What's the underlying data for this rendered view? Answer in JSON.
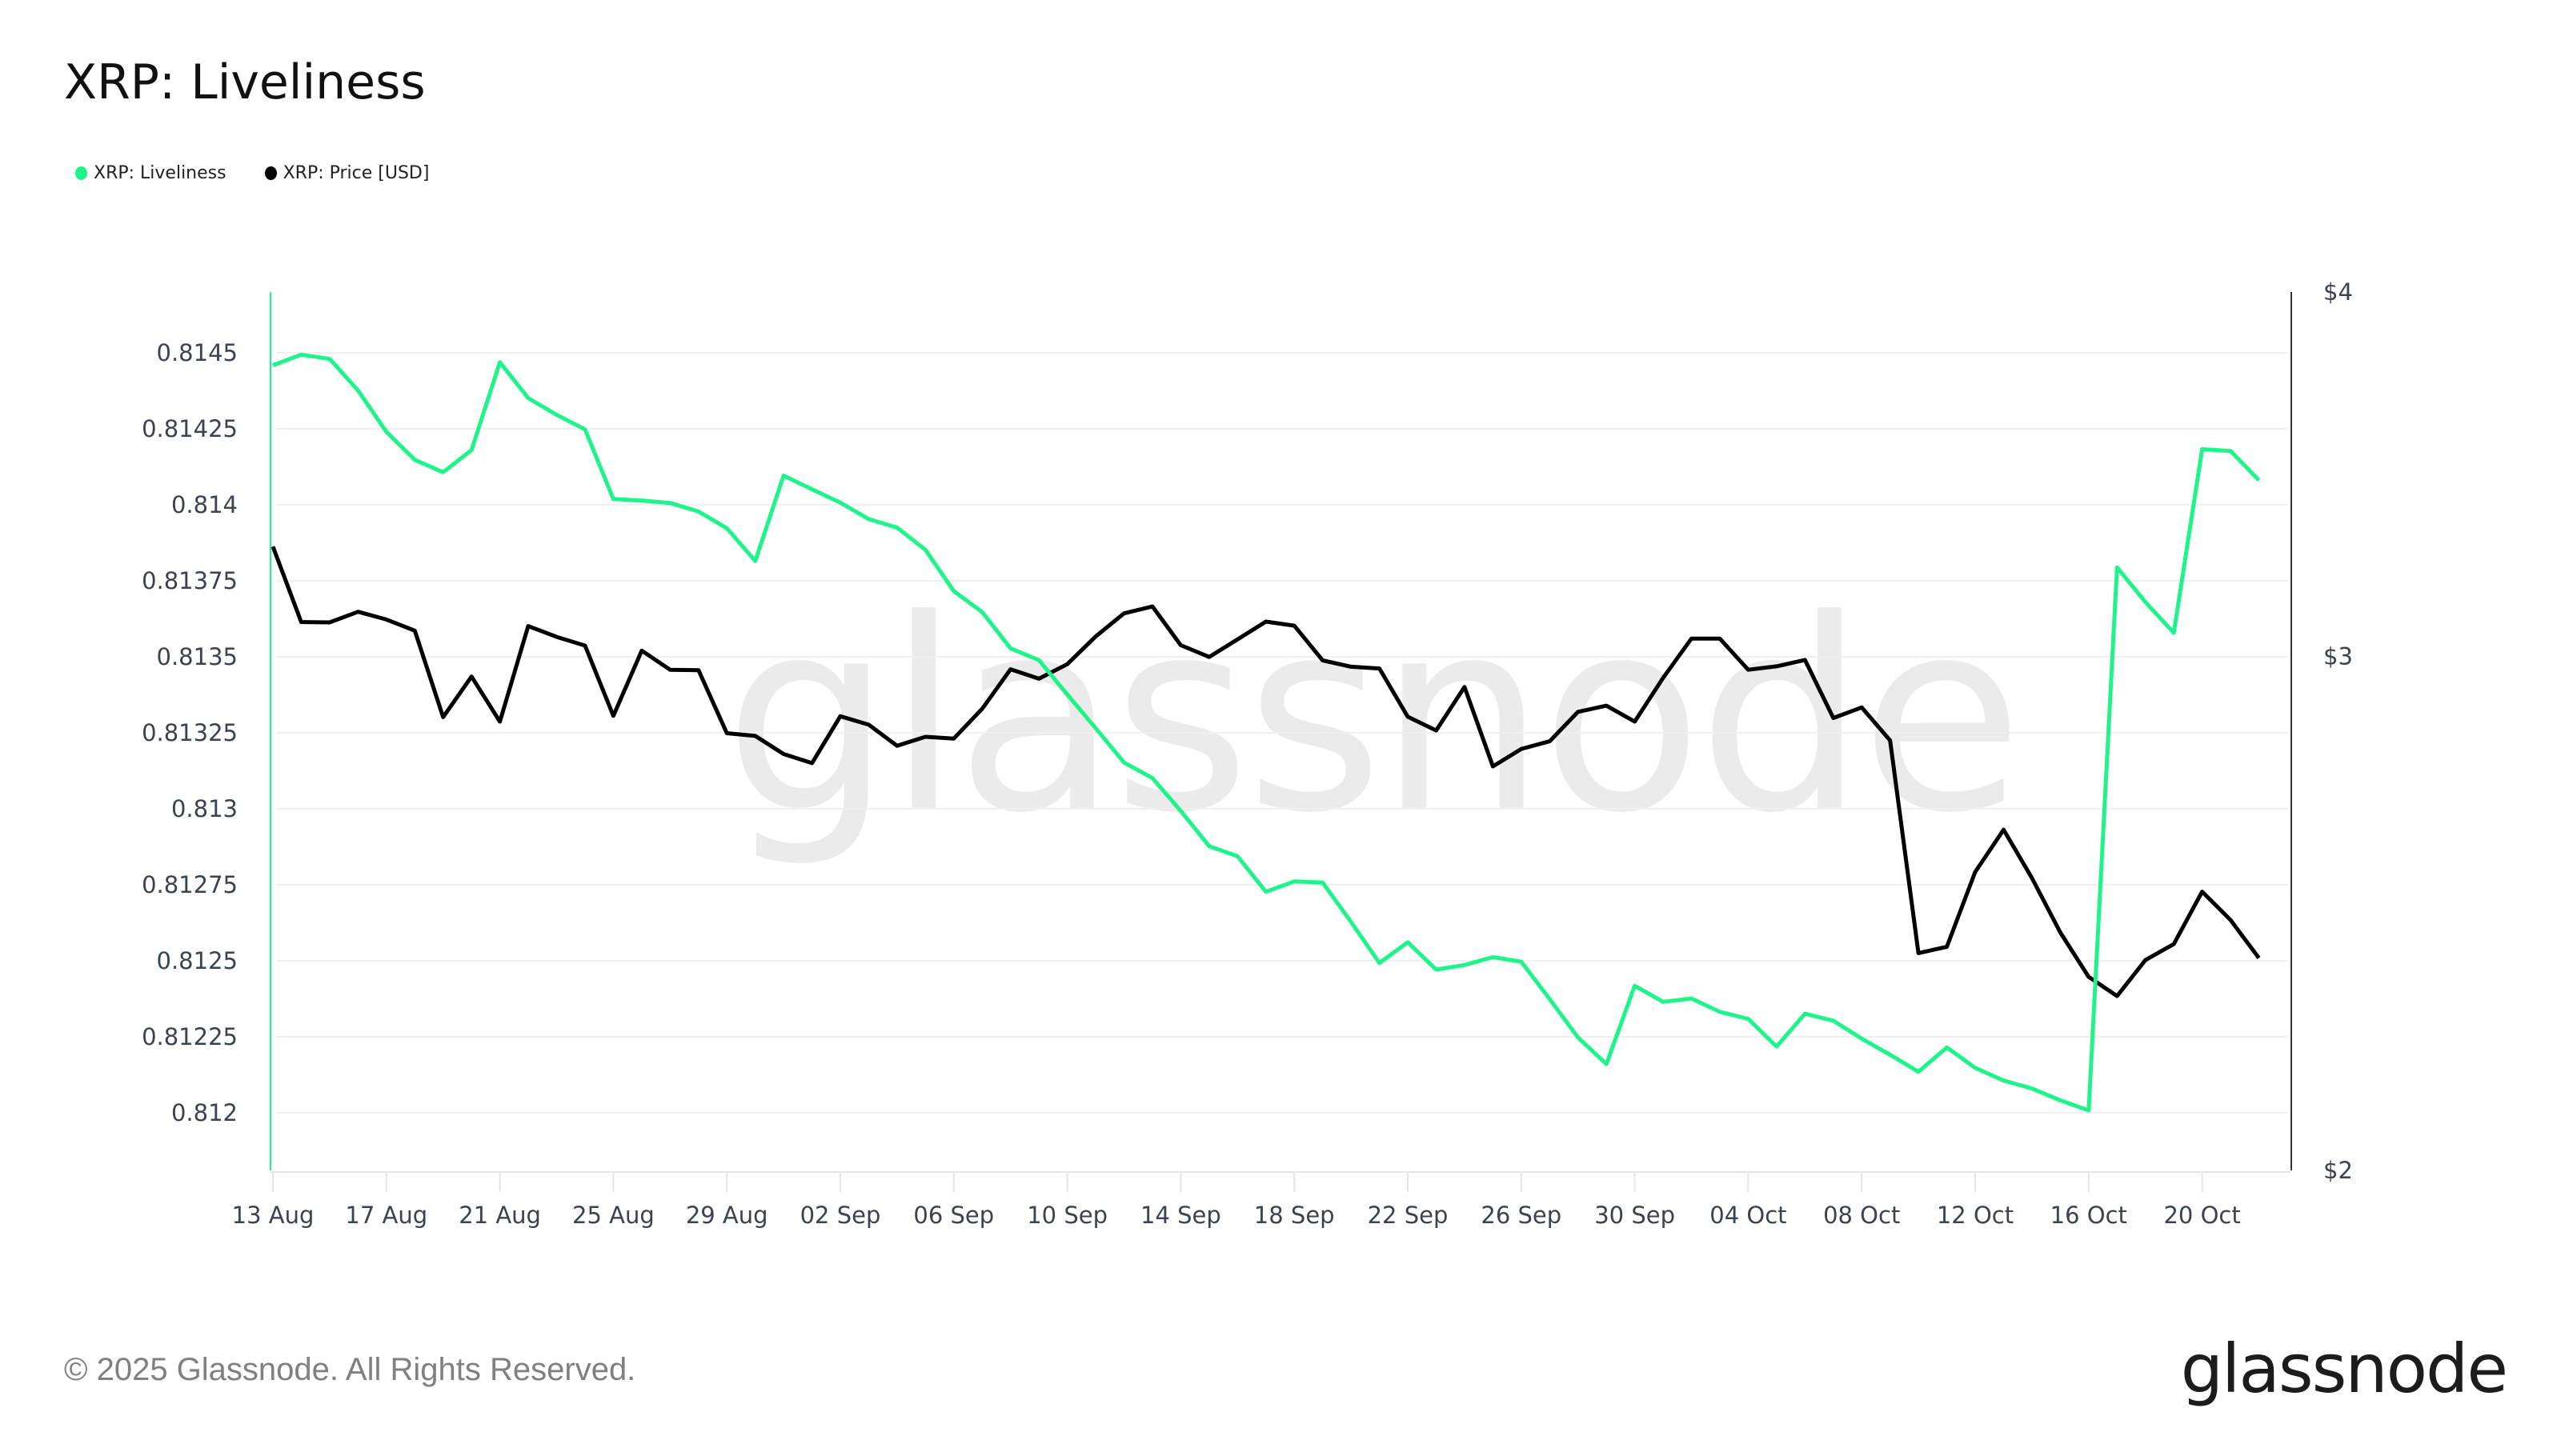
{
  "title": "XRP: Liveliness",
  "legend": [
    {
      "label": "XRP: Liveliness",
      "color": "#1ff48b"
    },
    {
      "label": "XRP: Price [USD]",
      "color": "#000000"
    }
  ],
  "watermark": "glassnode",
  "footer": {
    "copyright": "© 2025 Glassnode. All Rights Reserved.",
    "logo": "glassnode"
  },
  "colors": {
    "liveliness": "#1ff48b",
    "price": "#000000",
    "grid": "#f0f0f0",
    "axis_text": "#3b4250"
  },
  "chart_data": {
    "type": "line",
    "title": "XRP: Liveliness",
    "xlabel": "",
    "ylabel_left": "Liveliness",
    "ylabel_right": "Price [USD]",
    "x_tick_labels": [
      "13 Aug",
      "17 Aug",
      "21 Aug",
      "25 Aug",
      "29 Aug",
      "02 Sep",
      "06 Sep",
      "10 Sep",
      "14 Sep",
      "18 Sep",
      "22 Sep",
      "26 Sep",
      "30 Sep",
      "04 Oct",
      "08 Oct",
      "12 Oct",
      "16 Oct",
      "20 Oct"
    ],
    "x_start": "2025-08-13",
    "x_end": "2025-10-22",
    "y_left_ticks": [
      "0.8145",
      "0.81425",
      "0.814",
      "0.81375",
      "0.8135",
      "0.81325",
      "0.813",
      "0.81275",
      "0.8125",
      "0.81225",
      "0.812"
    ],
    "y_left_range": [
      0.811885,
      0.814595
    ],
    "y_right_ticks": [
      "$4",
      "$3",
      "$2"
    ],
    "y_right_range": [
      2,
      4
    ],
    "y_right_scale": "log",
    "grid": true,
    "legend_position": "top-left",
    "series": [
      {
        "name": "XRP: Liveliness",
        "axis": "left",
        "color": "#1ff48b",
        "values": [
          0.814459,
          0.814494,
          0.81448,
          0.814376,
          0.81424,
          0.814148,
          0.814107,
          0.81418,
          0.814469,
          0.814351,
          0.814296,
          0.814248,
          0.814019,
          0.814014,
          0.814006,
          0.813978,
          0.813923,
          0.813815,
          0.814096,
          0.814051,
          0.814007,
          0.813953,
          0.813925,
          0.813852,
          0.813716,
          0.813647,
          0.813528,
          0.813489,
          0.813376,
          0.813265,
          0.813152,
          0.813101,
          0.812993,
          0.812877,
          0.812844,
          0.812727,
          0.812761,
          0.812757,
          0.812628,
          0.812493,
          0.812561,
          0.812471,
          0.812486,
          0.812512,
          0.812497,
          0.812374,
          0.812248,
          0.81216,
          0.812418,
          0.812365,
          0.812376,
          0.812332,
          0.812309,
          0.812218,
          0.812326,
          0.812303,
          0.812244,
          0.812191,
          0.812135,
          0.812215,
          0.812148,
          0.812106,
          0.81208,
          0.812041,
          0.812008,
          0.813794,
          0.81368,
          0.813579,
          0.814183,
          0.814177,
          0.814081
        ]
      },
      {
        "name": "XRP: Price [USD]",
        "axis": "right",
        "color": "#000000",
        "values": [
          3.272,
          3.083,
          3.082,
          3.108,
          3.089,
          3.062,
          2.86,
          2.953,
          2.85,
          3.073,
          3.047,
          3.026,
          2.863,
          3.014,
          2.969,
          2.968,
          2.824,
          2.818,
          2.778,
          2.758,
          2.862,
          2.843,
          2.796,
          2.816,
          2.812,
          2.879,
          2.97,
          2.948,
          2.982,
          3.048,
          3.104,
          3.121,
          3.027,
          2.999,
          3.041,
          3.084,
          3.074,
          2.991,
          2.976,
          2.972,
          2.861,
          2.83,
          2.929,
          2.751,
          2.789,
          2.806,
          2.872,
          2.886,
          2.85,
          2.95,
          3.043,
          3.043,
          2.969,
          2.977,
          2.992,
          2.858,
          2.882,
          2.808,
          2.374,
          2.386,
          2.531,
          2.617,
          2.519,
          2.413,
          2.33,
          2.295,
          2.361,
          2.391,
          2.492,
          2.437,
          2.365
        ]
      }
    ]
  }
}
